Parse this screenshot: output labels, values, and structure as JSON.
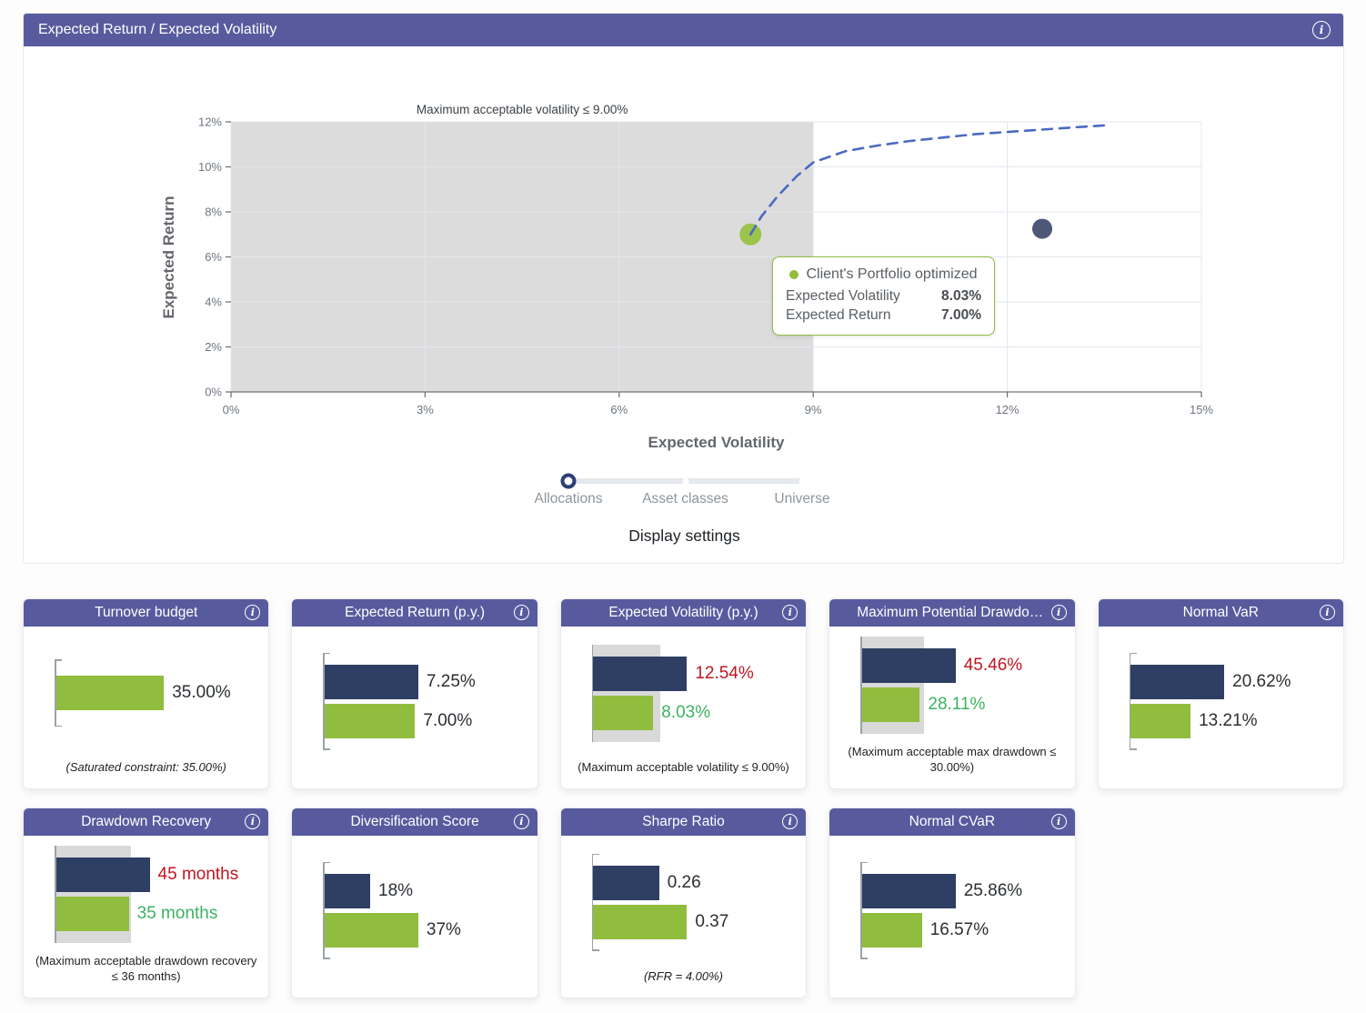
{
  "theme": {
    "header_purple": "#575b9e",
    "navy": "#2e3f63",
    "green": "#90bd3d",
    "red_label": "#c01622",
    "green_label": "#3db360",
    "constraint_zone_gray": "#d9d9d9",
    "frontier_blue": "#4a6ac0"
  },
  "panel": {
    "title": "Expected Return / Expected Volatility",
    "display_settings_label": "Display settings",
    "slider": {
      "options": [
        "Allocations",
        "Asset classes",
        "Universe"
      ],
      "selected": "Allocations"
    },
    "tooltip": {
      "title": "Client's Portfolio optimized",
      "rows": [
        {
          "label": "Expected Volatility",
          "value": "8.03%"
        },
        {
          "label": "Expected Return",
          "value": "7.00%"
        }
      ]
    }
  },
  "chart_data": {
    "type": "scatter",
    "title": "Expected Return / Expected Volatility",
    "xlabel": "Expected Volatility",
    "ylabel": "Expected Return",
    "xlim": [
      0,
      15
    ],
    "ylim": [
      0,
      12
    ],
    "x_ticks": [
      {
        "v": 0,
        "label": "0%"
      },
      {
        "v": 3,
        "label": "3%"
      },
      {
        "v": 6,
        "label": "6%"
      },
      {
        "v": 9,
        "label": "9%"
      },
      {
        "v": 12,
        "label": "12%"
      },
      {
        "v": 15,
        "label": "15%"
      }
    ],
    "y_ticks": [
      {
        "v": 0,
        "label": "0%"
      },
      {
        "v": 2,
        "label": "2%"
      },
      {
        "v": 4,
        "label": "4%"
      },
      {
        "v": 6,
        "label": "6%"
      },
      {
        "v": 8,
        "label": "8%"
      },
      {
        "v": 10,
        "label": "10%"
      },
      {
        "v": 12,
        "label": "12%"
      }
    ],
    "grid": true,
    "constraint_region": {
      "x_max": 9,
      "label": "Maximum acceptable volatility ≤ 9.00%"
    },
    "points": [
      {
        "name": "Client's Portfolio optimized",
        "x": 8.03,
        "y": 7.0,
        "color": "#9cc44c",
        "r": 12
      },
      {
        "name": "Client's Portfolio",
        "x": 12.54,
        "y": 7.25,
        "color": "#4d5878",
        "r": 11
      }
    ],
    "frontier_curve": {
      "style": "dashed",
      "color": "#4a6ac0",
      "points": [
        [
          8.03,
          7.0
        ],
        [
          8.2,
          7.8
        ],
        [
          8.45,
          8.7
        ],
        [
          8.75,
          9.6
        ],
        [
          9.0,
          10.2
        ],
        [
          9.5,
          10.7
        ],
        [
          10.0,
          10.95
        ],
        [
          10.5,
          11.15
        ],
        [
          11.0,
          11.3
        ],
        [
          11.5,
          11.45
        ],
        [
          12.0,
          11.55
        ],
        [
          12.5,
          11.65
        ],
        [
          13.0,
          11.75
        ],
        [
          13.55,
          11.85
        ]
      ]
    }
  },
  "cards": [
    {
      "title": "Turnover budget",
      "bars": [
        {
          "label": "35.00%",
          "value": 35,
          "color": "green",
          "label_color": "dark"
        }
      ],
      "constraint": null,
      "scale_max": 35,
      "max_bar_pct": 53,
      "footnote": "(Saturated constraint: 35.00%)",
      "footnote_italic": true
    },
    {
      "title": "Expected Return (p.y.)",
      "bars": [
        {
          "label": "7.25%",
          "value": 7.25,
          "color": "navy",
          "label_color": "dark"
        },
        {
          "label": "7.00%",
          "value": 7.0,
          "color": "green",
          "label_color": "dark"
        }
      ],
      "constraint": null,
      "scale_max": 7.25,
      "max_bar_pct": 46,
      "footnote": "",
      "footnote_italic": false
    },
    {
      "title": "Expected Volatility (p.y.)",
      "bars": [
        {
          "label": "12.54%",
          "value": 12.54,
          "color": "navy",
          "label_color": "red"
        },
        {
          "label": "8.03%",
          "value": 8.03,
          "color": "green",
          "label_color": "green"
        }
      ],
      "constraint": 9,
      "scale_max": 12.54,
      "max_bar_pct": 46,
      "footnote": "(Maximum acceptable volatility ≤ 9.00%)",
      "footnote_italic": false
    },
    {
      "title": "Maximum Potential Drawdow...",
      "bars": [
        {
          "label": "45.46%",
          "value": 45.46,
          "color": "navy",
          "label_color": "red"
        },
        {
          "label": "28.11%",
          "value": 28.11,
          "color": "green",
          "label_color": "green"
        }
      ],
      "constraint": 30,
      "scale_max": 45.46,
      "max_bar_pct": 46,
      "footnote": "(Maximum acceptable max drawdown ≤ 30.00%)",
      "footnote_italic": false
    },
    {
      "title": "Normal VaR",
      "bars": [
        {
          "label": "20.62%",
          "value": 20.62,
          "color": "navy",
          "label_color": "dark"
        },
        {
          "label": "13.21%",
          "value": 13.21,
          "color": "green",
          "label_color": "dark"
        }
      ],
      "constraint": null,
      "scale_max": 20.62,
      "max_bar_pct": 46,
      "footnote": "",
      "footnote_italic": false
    },
    {
      "title": "Drawdown Recovery",
      "bars": [
        {
          "label": "45 months",
          "value": 45,
          "color": "navy",
          "label_color": "red"
        },
        {
          "label": "35 months",
          "value": 35,
          "color": "green",
          "label_color": "green"
        }
      ],
      "constraint": 36,
      "scale_max": 45,
      "max_bar_pct": 46,
      "footnote": "(Maximum acceptable drawdown recovery ≤ 36 months)",
      "footnote_italic": false
    },
    {
      "title": "Diversification Score",
      "bars": [
        {
          "label": "18%",
          "value": 18,
          "color": "navy",
          "label_color": "dark"
        },
        {
          "label": "37%",
          "value": 37,
          "color": "green",
          "label_color": "dark"
        }
      ],
      "constraint": null,
      "scale_max": 37,
      "max_bar_pct": 46,
      "footnote": "",
      "footnote_italic": false
    },
    {
      "title": "Sharpe Ratio",
      "bars": [
        {
          "label": "0.26",
          "value": 0.26,
          "color": "navy",
          "label_color": "dark"
        },
        {
          "label": "0.37",
          "value": 0.37,
          "color": "green",
          "label_color": "dark"
        }
      ],
      "constraint": null,
      "scale_max": 0.37,
      "max_bar_pct": 46,
      "footnote": "(RFR = 4.00%)",
      "footnote_italic": true
    },
    {
      "title": "Normal CVaR",
      "bars": [
        {
          "label": "25.86%",
          "value": 25.86,
          "color": "navy",
          "label_color": "dark"
        },
        {
          "label": "16.57%",
          "value": 16.57,
          "color": "green",
          "label_color": "dark"
        }
      ],
      "constraint": null,
      "scale_max": 25.86,
      "max_bar_pct": 46,
      "footnote": "",
      "footnote_italic": false
    }
  ]
}
